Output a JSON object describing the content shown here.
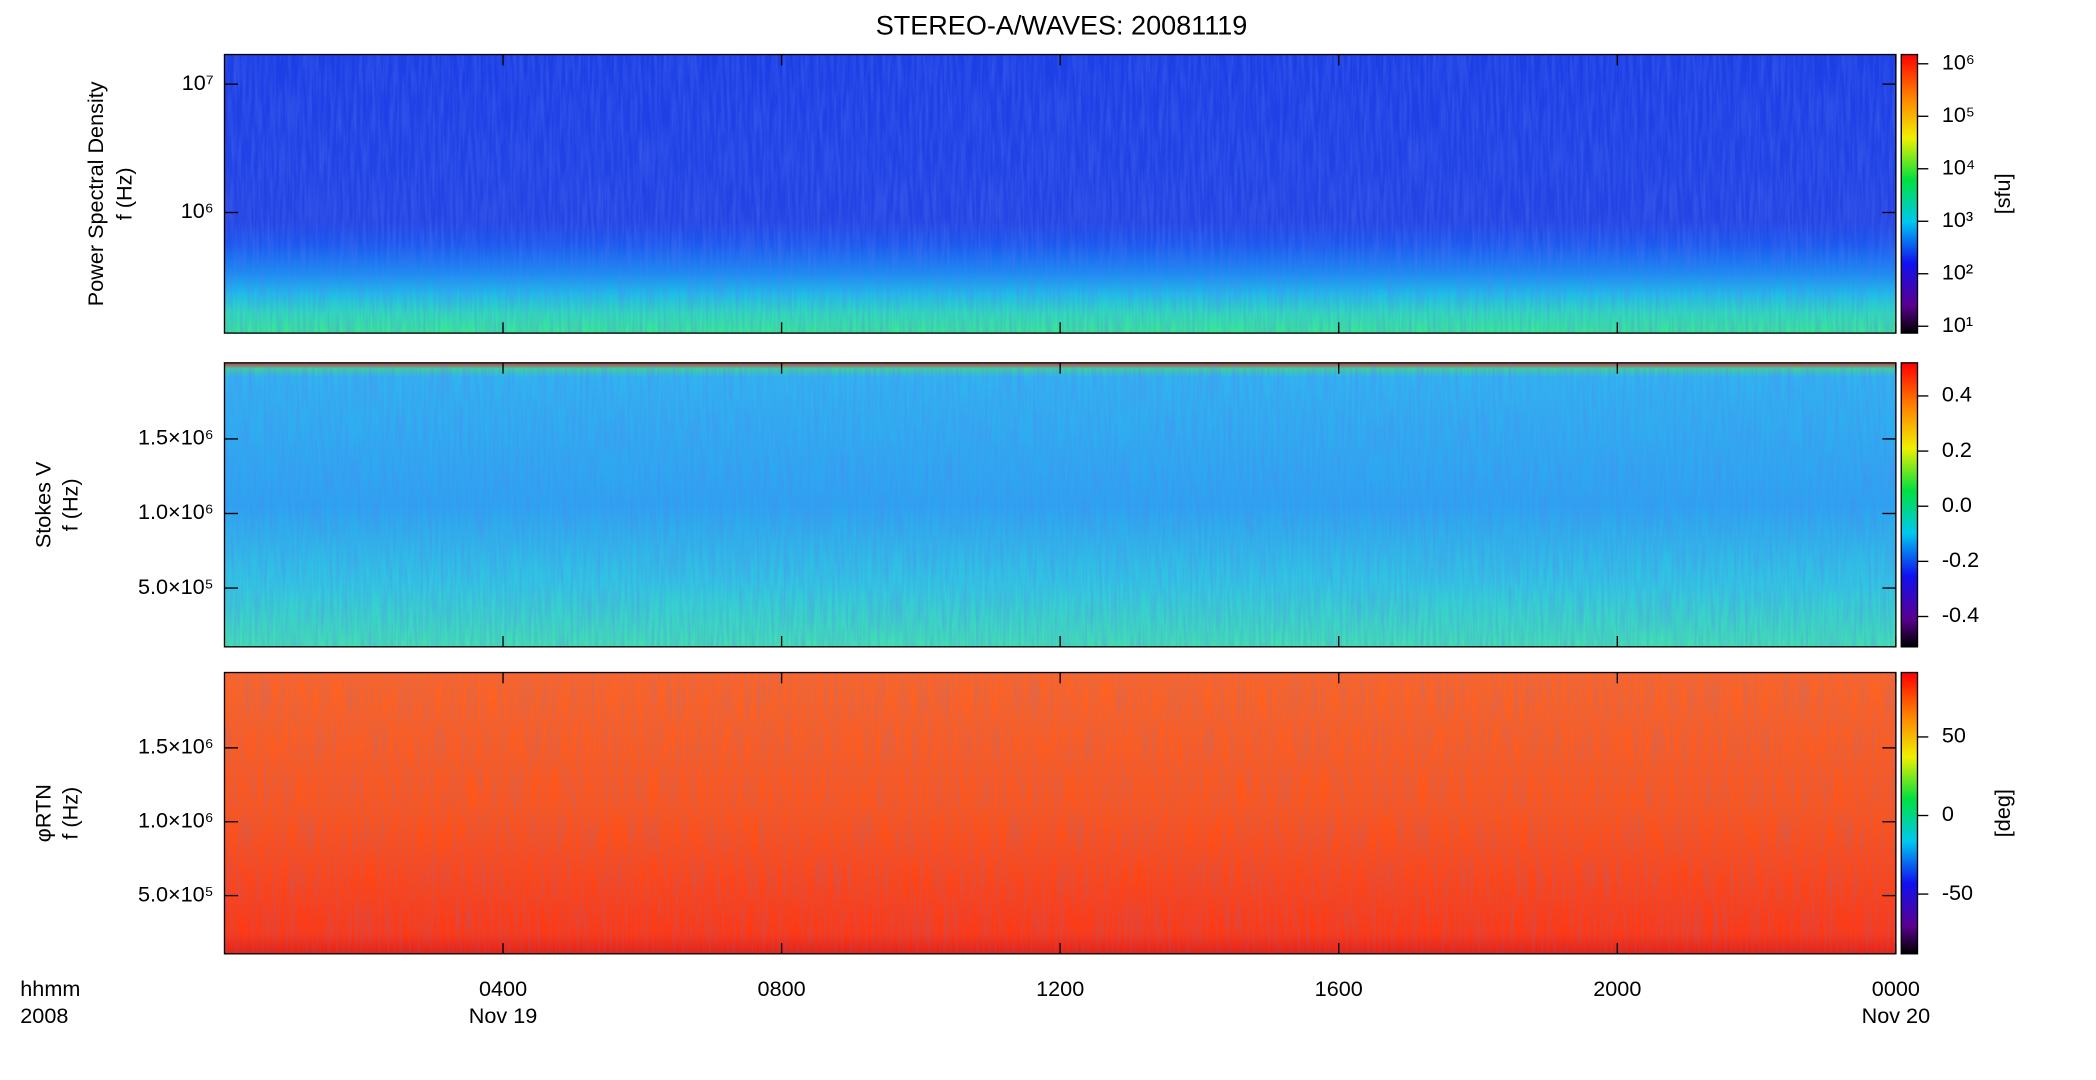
{
  "chart_data": [
    {
      "type": "spectrogram",
      "title": "STEREO-A/WAVES: 20081119",
      "ylabel": [
        "Power Spectral Density",
        "f (Hz)"
      ],
      "ylog": true,
      "ylim": [
        115000,
        17000000
      ],
      "yticks": [
        {
          "value": 1000000,
          "label": "10⁶"
        },
        {
          "value": 10000000,
          "label": "10⁷"
        }
      ],
      "xlim": [
        0,
        24
      ],
      "xticks": [
        4,
        8,
        12,
        16,
        20,
        24
      ],
      "colorbar": {
        "log": true,
        "lim": [
          7.4,
          1500000
        ],
        "label": "[sfu]",
        "ticks": [
          {
            "value": 10,
            "label": "10¹"
          },
          {
            "value": 100,
            "label": "10²"
          },
          {
            "value": 1000,
            "label": "10³"
          },
          {
            "value": 10000,
            "label": "10⁴"
          },
          {
            "value": 100000,
            "label": "10⁵"
          },
          {
            "value": 1000000,
            "label": "10⁶"
          }
        ]
      }
    },
    {
      "type": "spectrogram",
      "ylabel": [
        "Stokes V",
        "f (Hz)"
      ],
      "ylog": false,
      "ylim": [
        106000,
        2010000
      ],
      "yticks": [
        {
          "value": 500000,
          "label": "5.0×10⁵"
        },
        {
          "value": 1000000,
          "label": "1.0×10⁶"
        },
        {
          "value": 1500000,
          "label": "1.5×10⁶"
        }
      ],
      "xlim": [
        0,
        24
      ],
      "xticks": [
        4,
        8,
        12,
        16,
        20,
        24
      ],
      "colorbar": {
        "log": false,
        "lim": [
          -0.51,
          0.52
        ],
        "ticks": [
          {
            "value": -0.4,
            "label": "-0.4"
          },
          {
            "value": -0.2,
            "label": "-0.2"
          },
          {
            "value": 0,
            "label": "0.0"
          },
          {
            "value": 0.2,
            "label": "0.2"
          },
          {
            "value": 0.4,
            "label": "0.4"
          }
        ]
      }
    },
    {
      "type": "spectrogram",
      "ylabel": [
        "φRTN",
        "f (Hz)"
      ],
      "ylog": false,
      "ylim": [
        106000,
        2010000
      ],
      "yticks": [
        {
          "value": 500000,
          "label": "5.0×10⁵"
        },
        {
          "value": 1000000,
          "label": "1.0×10⁶"
        },
        {
          "value": 1500000,
          "label": "1.5×10⁶"
        }
      ],
      "xlim": [
        0,
        24
      ],
      "xticks": [
        {
          "value": 4,
          "label": "0400"
        },
        {
          "value": 8,
          "label": "0800"
        },
        {
          "value": 12,
          "label": "1200"
        },
        {
          "value": 16,
          "label": "1600"
        },
        {
          "value": 20,
          "label": "2000"
        },
        {
          "value": 24,
          "label": "0000"
        }
      ],
      "xdates": [
        {
          "value": 4,
          "label": "Nov 19"
        },
        {
          "value": 24,
          "label": "Nov 20"
        }
      ],
      "xlabel": [
        "hhmm",
        "2008"
      ],
      "colorbar": {
        "log": false,
        "lim": [
          -88,
          91
        ],
        "label": "[deg]",
        "ticks": [
          -50,
          0,
          50
        ]
      }
    }
  ]
}
